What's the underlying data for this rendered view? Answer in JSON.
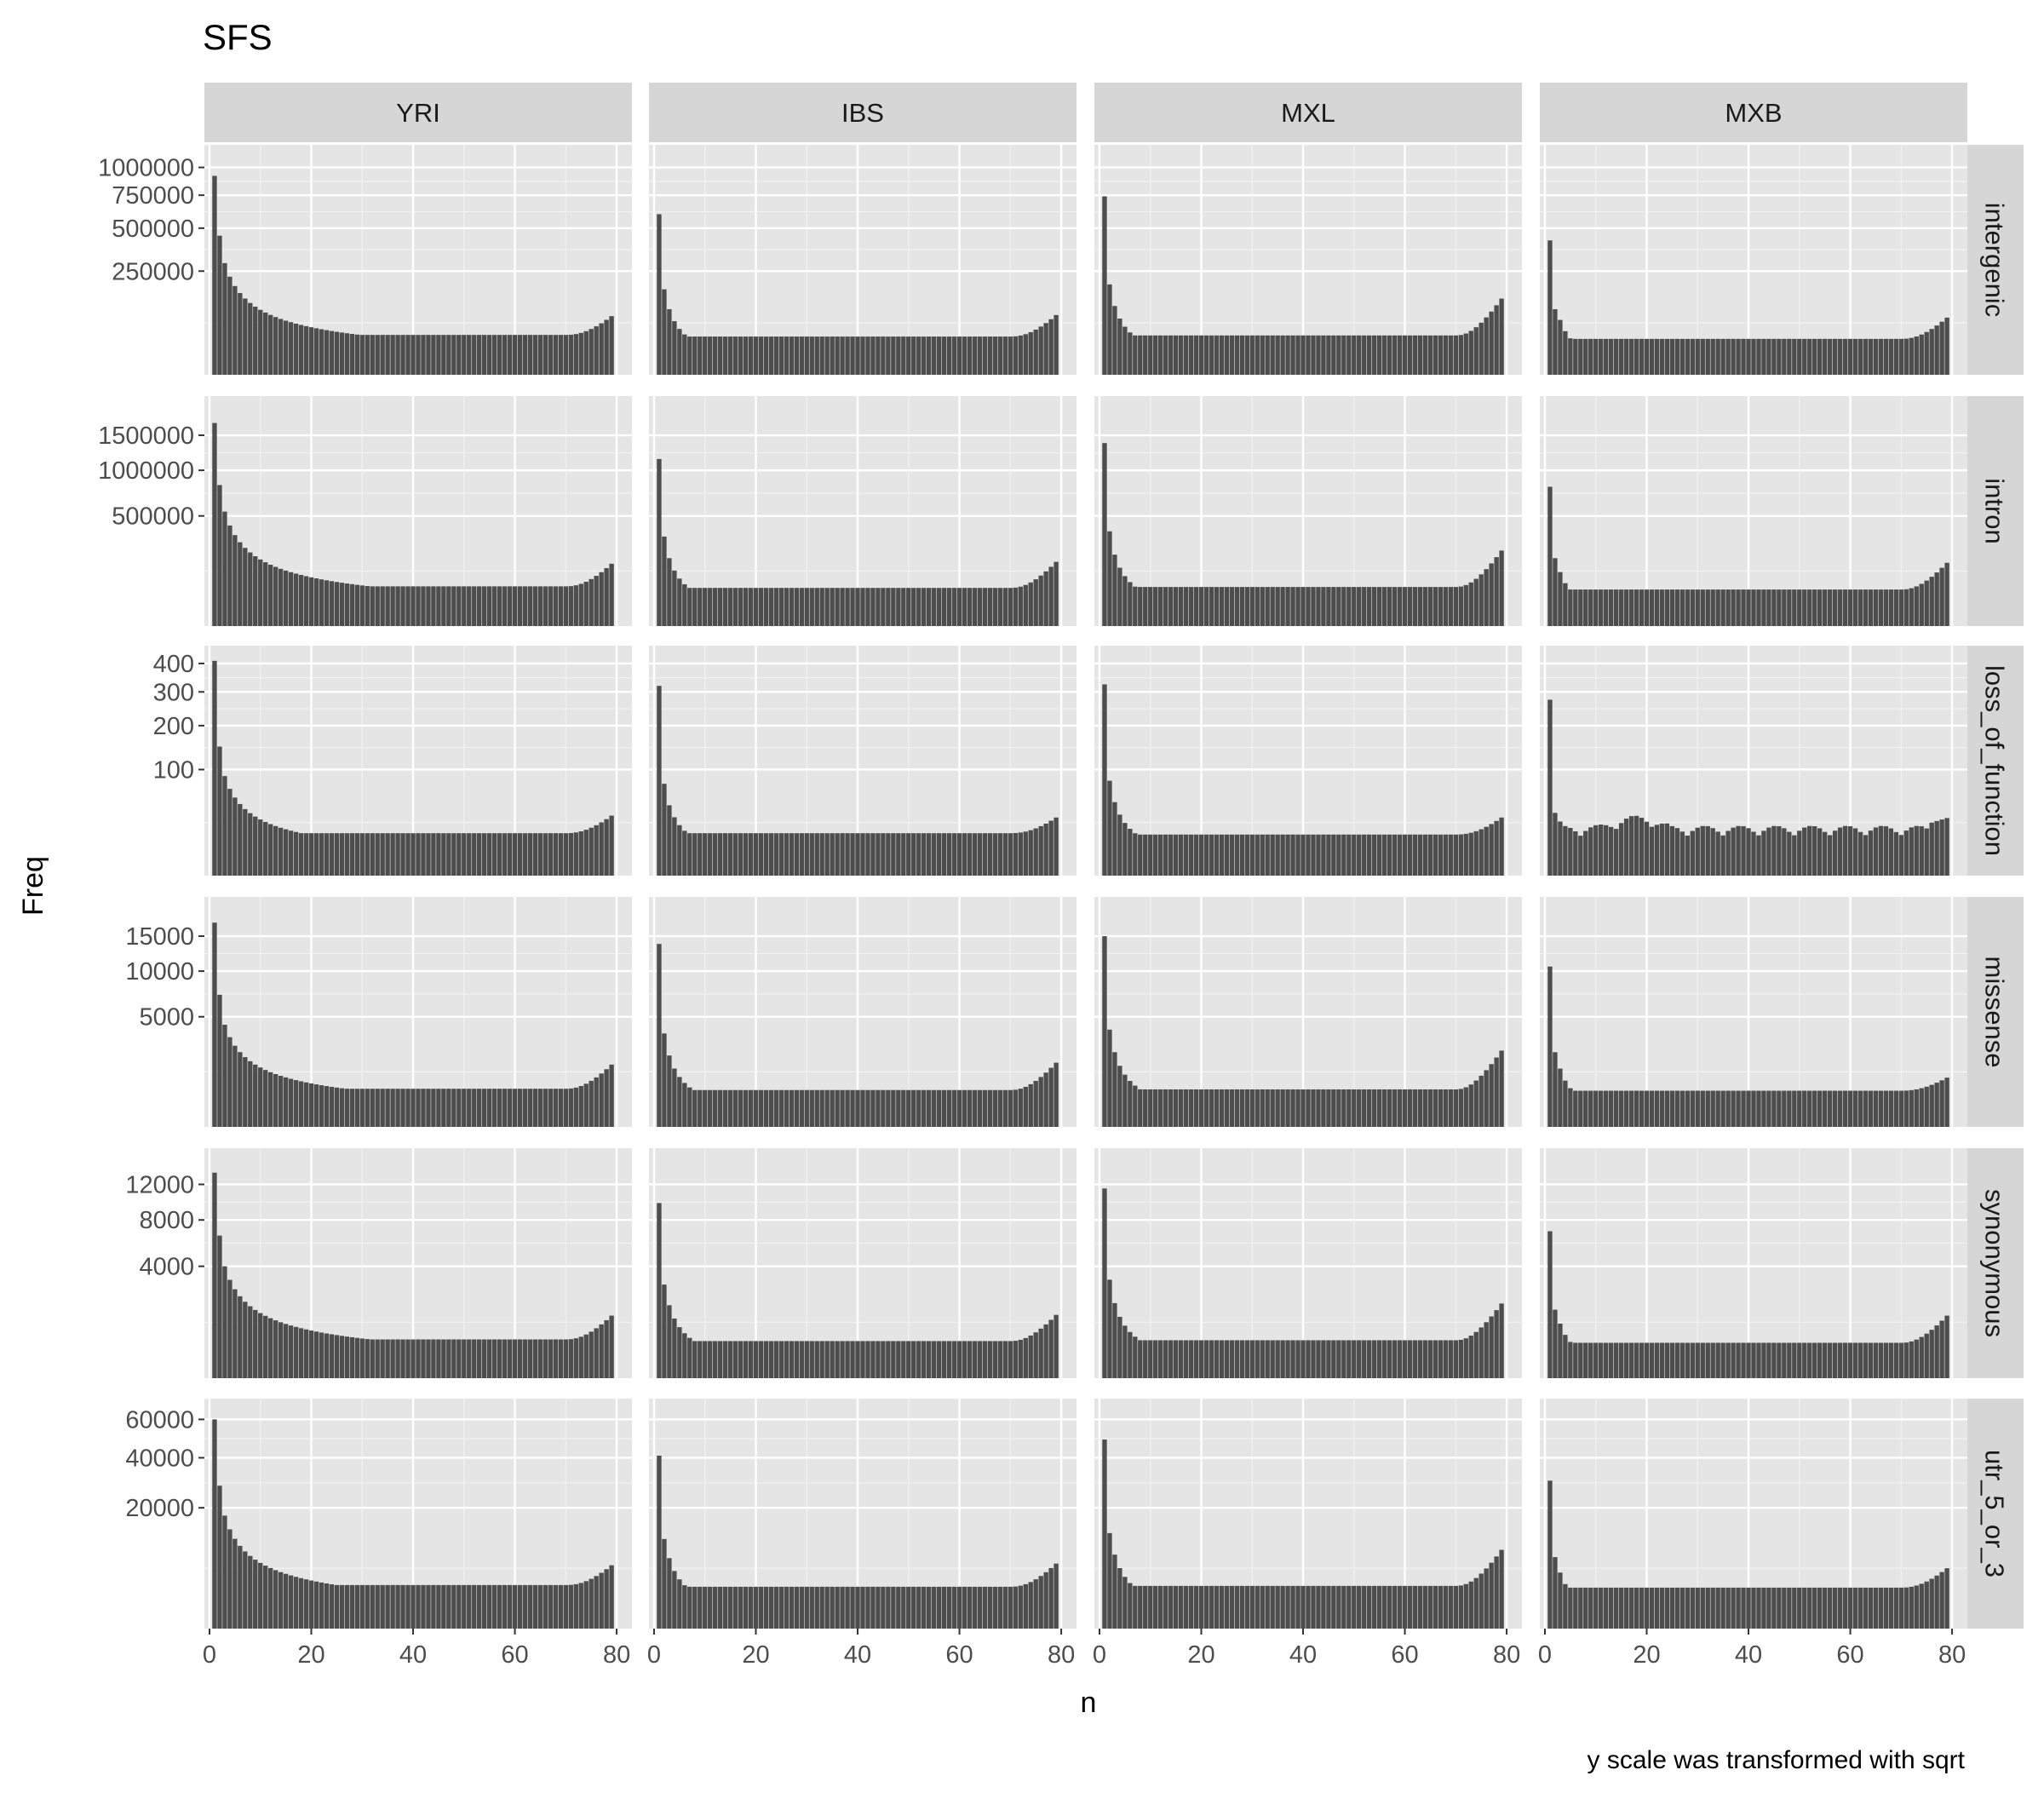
{
  "chart_data": {
    "type": "bar",
    "title": "SFS",
    "xlabel": "n",
    "ylabel": "Freq",
    "caption": "y scale was transformed with sqrt",
    "y_scale": "sqrt",
    "facet_cols": [
      "YRI",
      "IBS",
      "MXL",
      "MXB"
    ],
    "facet_rows": [
      "intergenic",
      "intron",
      "loss_of_function",
      "missense",
      "synonymous",
      "utr_5_or_3"
    ],
    "x_ticks": [
      0,
      20,
      40,
      60,
      80
    ],
    "xlim": [
      -1,
      83
    ],
    "grid": true,
    "bar_color": "#4d4d4d",
    "panel_background": "#e5e5e5",
    "strip_background": "#d6d6d6",
    "rows": [
      {
        "name": "intergenic",
        "y_ticks": [
          250000,
          500000,
          750000,
          1000000
        ],
        "y_tick_labels": [
          "250000",
          "500000",
          "750000",
          "1000000"
        ],
        "ylim": [
          0,
          1230000
        ],
        "series": [
          {
            "name": "YRI",
            "first": 920000,
            "second": 450000,
            "third": 290000,
            "min": 37000,
            "end": 80000,
            "p": 0.9
          },
          {
            "name": "IBS",
            "first": 600000,
            "second": 170000,
            "third": 100000,
            "min": 34000,
            "end": 83000,
            "p": 1.4
          },
          {
            "name": "MXL",
            "first": 740000,
            "second": 190000,
            "third": 110000,
            "min": 36000,
            "end": 135000,
            "p": 1.4
          },
          {
            "name": "MXB",
            "first": 420000,
            "second": 100000,
            "third": 70000,
            "min": 30000,
            "end": 76000,
            "p": 1.6
          }
        ]
      },
      {
        "name": "intron",
        "y_ticks": [
          500000,
          1000000,
          1500000
        ],
        "y_tick_labels": [
          "500000",
          "1000000",
          "1500000"
        ],
        "ylim": [
          0,
          2180000
        ],
        "series": [
          {
            "name": "YRI",
            "first": 1700000,
            "second": 820000,
            "third": 540000,
            "min": 65000,
            "end": 160000,
            "p": 0.9
          },
          {
            "name": "IBS",
            "first": 1150000,
            "second": 330000,
            "third": 190000,
            "min": 60000,
            "end": 170000,
            "p": 1.4
          },
          {
            "name": "MXL",
            "first": 1380000,
            "second": 370000,
            "third": 210000,
            "min": 63000,
            "end": 235000,
            "p": 1.4
          },
          {
            "name": "MXB",
            "first": 800000,
            "second": 190000,
            "third": 120000,
            "min": 55000,
            "end": 165000,
            "p": 1.6
          }
        ]
      },
      {
        "name": "loss_of_function",
        "y_ticks": [
          100,
          200,
          300,
          400
        ],
        "y_tick_labels": [
          "100",
          "200",
          "300",
          "400"
        ],
        "ylim": [
          0,
          470
        ],
        "series": [
          {
            "name": "YRI",
            "first": 410,
            "second": 148,
            "third": 88,
            "min": 16,
            "end": 32,
            "p": 0.95
          },
          {
            "name": "IBS",
            "first": 320,
            "second": 75,
            "third": 44,
            "min": 16,
            "end": 30,
            "p": 1.3
          },
          {
            "name": "MXL",
            "first": 325,
            "second": 80,
            "third": 48,
            "min": 15,
            "end": 30,
            "p": 1.3
          },
          {
            "name": "MXB",
            "first": 275,
            "second": 35,
            "third": 26,
            "min": 14,
            "end": 25,
            "p": 2.0
          }
        ]
      },
      {
        "name": "missense",
        "y_ticks": [
          5000,
          10000,
          15000
        ],
        "y_tick_labels": [
          "5000",
          "10000",
          "15000"
        ],
        "ylim": [
          0,
          21800
        ],
        "series": [
          {
            "name": "YRI",
            "first": 17200,
            "second": 7200,
            "third": 4300,
            "min": 600,
            "end": 1600,
            "p": 0.9
          },
          {
            "name": "IBS",
            "first": 13800,
            "second": 3600,
            "third": 2100,
            "min": 560,
            "end": 1700,
            "p": 1.4
          },
          {
            "name": "MXL",
            "first": 15000,
            "second": 3900,
            "third": 2300,
            "min": 580,
            "end": 2400,
            "p": 1.4
          },
          {
            "name": "MXB",
            "first": 10600,
            "second": 2300,
            "third": 1400,
            "min": 540,
            "end": 1000,
            "p": 1.6
          }
        ]
      },
      {
        "name": "synonymous",
        "y_ticks": [
          4000,
          8000,
          12000
        ],
        "y_tick_labels": [
          "4000",
          "8000",
          "12000"
        ],
        "ylim": [
          0,
          16900
        ],
        "series": [
          {
            "name": "YRI",
            "first": 13500,
            "second": 6500,
            "third": 4000,
            "min": 480,
            "end": 1250,
            "p": 0.9
          },
          {
            "name": "IBS",
            "first": 9800,
            "second": 2800,
            "third": 1700,
            "min": 440,
            "end": 1280,
            "p": 1.4
          },
          {
            "name": "MXL",
            "first": 11500,
            "second": 3100,
            "third": 1800,
            "min": 460,
            "end": 1780,
            "p": 1.4
          },
          {
            "name": "MXB",
            "first": 6900,
            "second": 1500,
            "third": 950,
            "min": 400,
            "end": 1250,
            "p": 1.6
          }
        ]
      },
      {
        "name": "utr_5_or_3",
        "y_ticks": [
          20000,
          40000,
          60000
        ],
        "y_tick_labels": [
          "20000",
          "40000",
          "60000"
        ],
        "ylim": [
          0,
          72500
        ],
        "series": [
          {
            "name": "YRI",
            "first": 60000,
            "second": 28000,
            "third": 17500,
            "min": 2600,
            "end": 5500,
            "p": 0.9
          },
          {
            "name": "IBS",
            "first": 41000,
            "second": 11000,
            "third": 6800,
            "min": 2400,
            "end": 5800,
            "p": 1.4
          },
          {
            "name": "MXL",
            "first": 49000,
            "second": 12500,
            "third": 7500,
            "min": 2500,
            "end": 8500,
            "p": 1.4
          },
          {
            "name": "MXB",
            "first": 30000,
            "second": 7000,
            "third": 4300,
            "min": 2300,
            "end": 5000,
            "p": 1.6
          }
        ]
      }
    ]
  }
}
